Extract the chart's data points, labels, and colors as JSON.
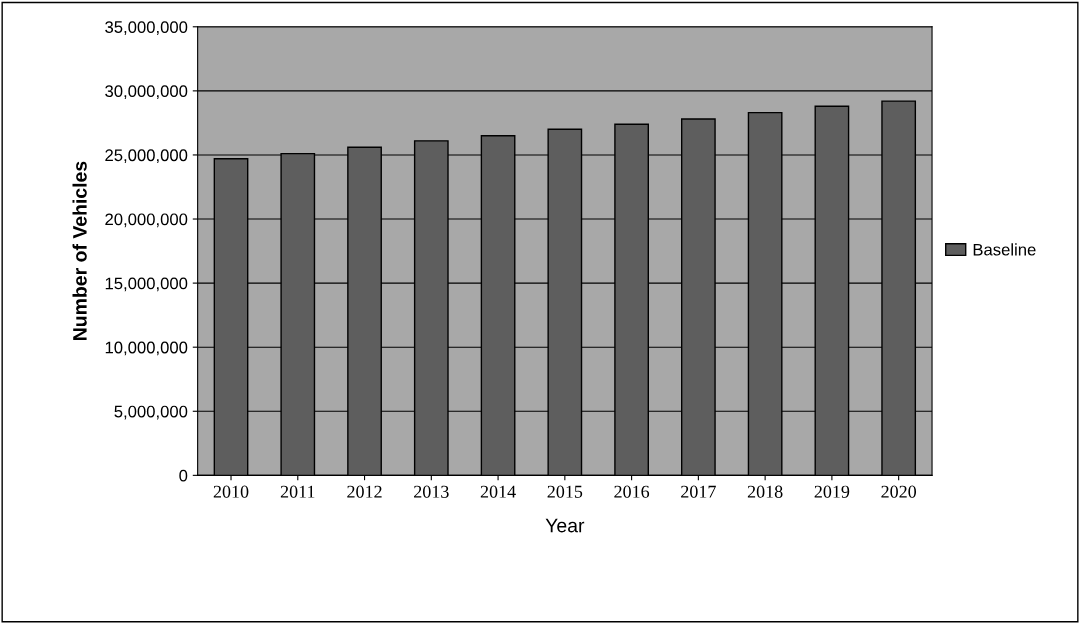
{
  "chart_data": {
    "type": "bar",
    "xlabel": "Year",
    "ylabel": "Number of Vehicles",
    "categories": [
      "2010",
      "2011",
      "2012",
      "2013",
      "2014",
      "2015",
      "2016",
      "2017",
      "2018",
      "2019",
      "2020"
    ],
    "series": [
      {
        "name": "Baseline",
        "color": "#5e5e5e",
        "values": [
          24700000,
          25100000,
          25600000,
          26100000,
          26500000,
          27000000,
          27400000,
          27800000,
          28300000,
          28800000,
          29200000
        ]
      }
    ],
    "ylim": [
      0,
      35000000
    ],
    "yticks": [
      0,
      {
        "value": 5000000,
        "label": "5,000,000"
      },
      {
        "value": 10000000,
        "label": "10,000,000"
      },
      {
        "value": 15000000,
        "label": "15,000,000"
      },
      {
        "value": 20000000,
        "label": "20,000,000"
      },
      {
        "value": 25000000,
        "label": "25,000,000"
      },
      {
        "value": 30000000,
        "label": "30,000,000"
      },
      {
        "value": 35000000,
        "label": "35,000,000"
      }
    ],
    "grid": "y",
    "legend": "right"
  }
}
